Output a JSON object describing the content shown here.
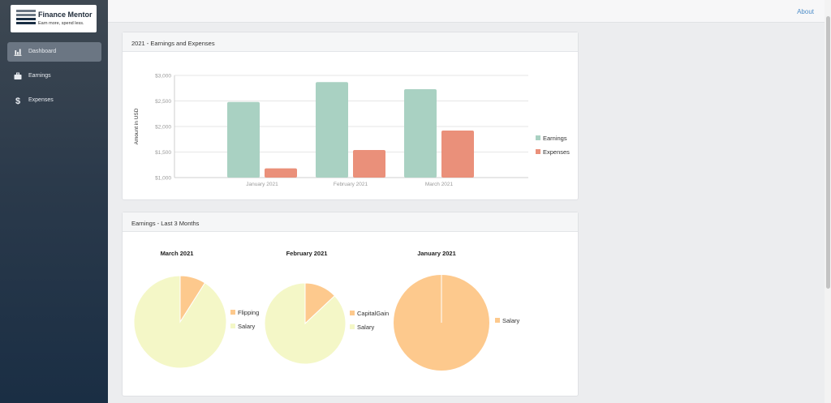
{
  "app": {
    "title": "Finance Mentor",
    "tagline": "Earn more, spend less."
  },
  "sidebar": {
    "items": [
      {
        "label": "Dashboard",
        "icon": "bar-chart-icon",
        "active": true
      },
      {
        "label": "Earnings",
        "icon": "briefcase-icon",
        "active": false
      },
      {
        "label": "Expenses",
        "icon": "dollar-icon",
        "active": false
      }
    ]
  },
  "topbar": {
    "about_label": "About"
  },
  "cards": {
    "bar": {
      "title": "2021 - Earnings and Expenses"
    },
    "pies": {
      "title": "Earnings - Last 3 Months"
    }
  },
  "colors": {
    "earnings": "#a9d1c2",
    "expenses": "#ea907a",
    "peach": "#fdc98d",
    "cream": "#f4f7c7"
  },
  "chart_data": [
    {
      "type": "bar",
      "categories": [
        "January 2021",
        "February 2021",
        "March 2021"
      ],
      "series": [
        {
          "name": "Earnings",
          "values": [
            2480,
            2870,
            2730
          ]
        },
        {
          "name": "Expenses",
          "values": [
            1180,
            1540,
            1920
          ]
        }
      ],
      "ylabel": "Amount in USD",
      "ylim": [
        1000,
        3000
      ],
      "yticks": [
        1000,
        1500,
        2000,
        2500,
        3000
      ],
      "ytick_labels": [
        "$1,000",
        "$1,500",
        "$2,000",
        "$2,500",
        "$3,000"
      ],
      "grid": true,
      "legend": "right"
    },
    {
      "type": "pie",
      "title": "March 2021",
      "slices": [
        {
          "name": "Flipping",
          "value": 9
        },
        {
          "name": "Salary",
          "value": 91
        }
      ],
      "legend": "right"
    },
    {
      "type": "pie",
      "title": "February 2021",
      "slices": [
        {
          "name": "CapitalGain",
          "value": 13
        },
        {
          "name": "Salary",
          "value": 87
        }
      ],
      "legend": "right"
    },
    {
      "type": "pie",
      "title": "January 2021",
      "slices": [
        {
          "name": "Salary",
          "value": 100
        }
      ],
      "legend": "right"
    }
  ]
}
